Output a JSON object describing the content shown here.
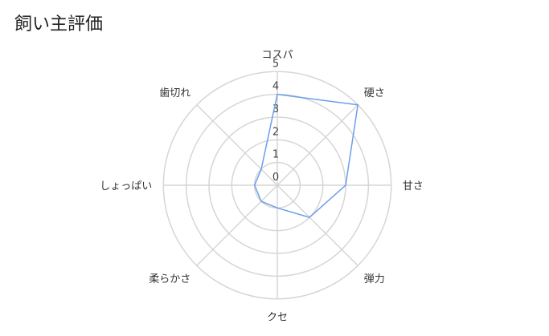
{
  "chart_data": {
    "type": "radar",
    "title": "飼い主評価",
    "categories": [
      "コスパ",
      "硬さ",
      "甘さ",
      "弾力",
      "クセ",
      "柔らかさ",
      "しょっぱい",
      "歯切れ"
    ],
    "series": [
      {
        "values": [
          4,
          5,
          3,
          2,
          1,
          1,
          1,
          1
        ],
        "color": "#6d9eeb"
      }
    ],
    "rlim": [
      0,
      5
    ],
    "ticks": [
      "0",
      "1",
      "2",
      "3",
      "4",
      "5"
    ],
    "grid": true,
    "legend": "none"
  }
}
